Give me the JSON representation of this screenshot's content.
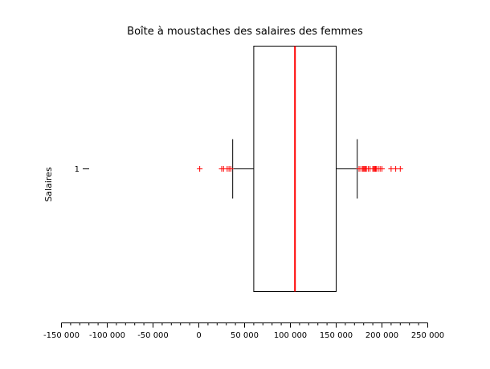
{
  "chart_data": {
    "type": "boxplot",
    "title": "Boîte à moustaches des salaires des femmes",
    "ylabel": "Salaires",
    "category_label": "1",
    "xlim": [
      -150000,
      250000
    ],
    "x_ticks": [
      {
        "value": -150000,
        "label": "-150 000"
      },
      {
        "value": -100000,
        "label": "-100 000"
      },
      {
        "value": -50000,
        "label": "-50 000"
      },
      {
        "value": 0,
        "label": "0"
      },
      {
        "value": 50000,
        "label": "50 000"
      },
      {
        "value": 100000,
        "label": "100 000"
      },
      {
        "value": 150000,
        "label": "150 000"
      },
      {
        "value": 200000,
        "label": "200 000"
      },
      {
        "value": 250000,
        "label": "250 000"
      }
    ],
    "box": {
      "whisker_low": 37000,
      "q1": 60000,
      "median": 105000,
      "q3": 150000,
      "whisker_high": 173000
    },
    "outliers": [
      1000,
      25000,
      27000,
      31000,
      33000,
      35000,
      175000,
      177000,
      179000,
      180000,
      181000,
      182000,
      183000,
      185000,
      187000,
      190000,
      191000,
      192000,
      193000,
      194000,
      196000,
      198000,
      200000,
      210000,
      215000,
      220000
    ],
    "colors": {
      "median": "#ff0000",
      "outlier": "#ff0000",
      "box": "#000000"
    }
  }
}
